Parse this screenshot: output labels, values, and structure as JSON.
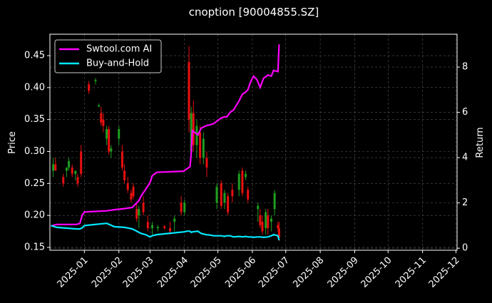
{
  "chart_data": {
    "type": "candlestick",
    "title": "cnoption [90004855.SZ]",
    "ylabel": "Price",
    "y2label": "Return",
    "xlim": [
      0,
      366
    ],
    "xticks": [
      {
        "value": 31,
        "label": "2025-01"
      },
      {
        "value": 62,
        "label": "2025-02"
      },
      {
        "value": 90,
        "label": "2025-03"
      },
      {
        "value": 121,
        "label": "2025-04"
      },
      {
        "value": 151,
        "label": "2025-05"
      },
      {
        "value": 182,
        "label": "2025-06"
      },
      {
        "value": 212,
        "label": "2025-07"
      },
      {
        "value": 243,
        "label": "2025-08"
      },
      {
        "value": 274,
        "label": "2025-09"
      },
      {
        "value": 304,
        "label": "2025-10"
      },
      {
        "value": 335,
        "label": "2025-11"
      },
      {
        "value": 365,
        "label": "2025-12"
      }
    ],
    "ylim": [
      0.1455,
      0.4835
    ],
    "yticks": [
      0.15,
      {
        "value": 0.2,
        "label": "0.20"
      },
      0.25,
      {
        "value": 0.3,
        "label": "0.30"
      },
      0.35,
      {
        "value": 0.4,
        "label": "0.40"
      },
      0.45
    ],
    "y2lim": [
      -0.09,
      9.45
    ],
    "y2ticks": [
      0,
      2,
      4,
      6,
      8
    ],
    "grid": true,
    "legend": "upper left",
    "up_color": "#1f9e1f",
    "down_color": "#e81010",
    "candles": {
      "x": [
        3,
        5,
        12,
        15,
        17,
        20,
        23,
        25,
        28,
        35,
        41,
        44,
        46,
        48,
        51,
        53,
        55,
        62,
        65,
        67,
        70,
        73,
        75,
        78,
        80,
        84,
        88,
        92,
        97,
        103,
        108,
        112,
        118,
        121,
        125,
        127,
        129,
        132,
        135,
        138,
        141,
        150,
        154,
        157,
        160,
        164,
        170,
        173,
        176,
        178,
        187,
        189,
        191,
        194,
        196,
        199,
        202,
        205,
        206
      ],
      "open": [
        0.27,
        0.28,
        0.26,
        0.27,
        0.275,
        0.275,
        0.265,
        0.26,
        0.3,
        0.405,
        0.41,
        0.37,
        0.36,
        0.35,
        0.32,
        0.335,
        0.3,
        0.32,
        0.3,
        0.27,
        0.25,
        0.235,
        0.245,
        0.21,
        0.2,
        0.22,
        0.19,
        0.18,
        0.18,
        0.183,
        0.18,
        0.19,
        0.22,
        0.205,
        0.44,
        0.3,
        0.36,
        0.31,
        0.33,
        0.29,
        0.29,
        0.22,
        0.25,
        0.22,
        0.23,
        0.24,
        0.24,
        0.27,
        0.26,
        0.24,
        0.21,
        0.2,
        0.19,
        0.18,
        0.2,
        0.19,
        0.21,
        0.185,
        0.18
      ],
      "high": [
        0.29,
        0.29,
        0.265,
        0.275,
        0.29,
        0.28,
        0.27,
        0.265,
        0.31,
        0.41,
        0.415,
        0.375,
        0.37,
        0.36,
        0.34,
        0.34,
        0.31,
        0.34,
        0.31,
        0.28,
        0.26,
        0.24,
        0.25,
        0.22,
        0.215,
        0.23,
        0.2,
        0.19,
        0.185,
        0.185,
        0.19,
        0.2,
        0.23,
        0.225,
        0.465,
        0.37,
        0.38,
        0.35,
        0.34,
        0.33,
        0.3,
        0.25,
        0.255,
        0.24,
        0.235,
        0.25,
        0.27,
        0.275,
        0.27,
        0.245,
        0.22,
        0.21,
        0.2,
        0.21,
        0.21,
        0.2,
        0.24,
        0.19,
        0.19
      ],
      "low": [
        0.26,
        0.27,
        0.245,
        0.26,
        0.27,
        0.26,
        0.255,
        0.245,
        0.26,
        0.39,
        0.405,
        0.37,
        0.34,
        0.33,
        0.31,
        0.295,
        0.29,
        0.31,
        0.27,
        0.25,
        0.235,
        0.22,
        0.225,
        0.19,
        0.18,
        0.2,
        0.175,
        0.17,
        0.175,
        0.178,
        0.17,
        0.175,
        0.2,
        0.2,
        0.33,
        0.29,
        0.3,
        0.29,
        0.28,
        0.28,
        0.26,
        0.21,
        0.21,
        0.21,
        0.2,
        0.22,
        0.23,
        0.23,
        0.255,
        0.22,
        0.19,
        0.18,
        0.17,
        0.17,
        0.17,
        0.175,
        0.2,
        0.175,
        0.16
      ],
      "close": [
        0.28,
        0.27,
        0.25,
        0.275,
        0.285,
        0.265,
        0.27,
        0.25,
        0.265,
        0.395,
        0.412,
        0.372,
        0.345,
        0.34,
        0.335,
        0.3,
        0.305,
        0.335,
        0.275,
        0.255,
        0.24,
        0.225,
        0.23,
        0.195,
        0.21,
        0.205,
        0.18,
        0.185,
        0.182,
        0.18,
        0.175,
        0.195,
        0.205,
        0.22,
        0.35,
        0.36,
        0.31,
        0.34,
        0.29,
        0.32,
        0.275,
        0.245,
        0.215,
        0.235,
        0.205,
        0.23,
        0.265,
        0.235,
        0.265,
        0.225,
        0.215,
        0.185,
        0.175,
        0.205,
        0.18,
        0.195,
        0.235,
        0.18,
        0.165
      ]
    },
    "x": [
      1,
      6,
      24,
      27,
      29,
      31,
      51,
      58,
      67,
      74,
      77,
      80,
      82,
      86,
      90,
      92,
      96,
      120,
      123,
      126,
      127,
      128,
      133,
      136,
      140,
      144,
      147,
      154,
      157,
      159,
      162,
      165,
      170,
      173,
      176,
      178,
      180,
      183,
      186,
      189,
      192,
      196,
      199,
      201,
      205,
      206
    ],
    "series": [
      {
        "name": "Swtool.com AI",
        "color": "#ff00ff",
        "axis": "y2",
        "values": [
          0.98,
          1.05,
          1.05,
          1.1,
          1.45,
          1.6,
          1.65,
          1.7,
          1.75,
          1.8,
          1.95,
          2.1,
          2.3,
          2.6,
          2.9,
          3.2,
          3.35,
          3.4,
          3.5,
          3.6,
          4.2,
          5.2,
          5.0,
          5.3,
          5.4,
          5.45,
          5.5,
          5.75,
          5.8,
          5.8,
          6.0,
          6.1,
          6.5,
          6.8,
          6.9,
          7.0,
          7.3,
          7.6,
          7.45,
          7.1,
          7.5,
          7.65,
          7.6,
          7.85,
          7.8,
          9.0
        ]
      },
      {
        "name": "Buy-and-Hold",
        "color": "#00e8ff",
        "axis": "y2",
        "values": [
          1.0,
          0.92,
          0.85,
          0.85,
          0.9,
          1.0,
          1.1,
          0.95,
          0.92,
          0.85,
          0.78,
          0.7,
          0.65,
          0.6,
          0.5,
          0.55,
          0.6,
          0.72,
          0.75,
          0.75,
          0.7,
          0.72,
          0.75,
          0.65,
          0.6,
          0.58,
          0.55,
          0.55,
          0.52,
          0.55,
          0.55,
          0.5,
          0.52,
          0.5,
          0.52,
          0.5,
          0.5,
          0.48,
          0.5,
          0.5,
          0.48,
          0.5,
          0.55,
          0.6,
          0.55,
          0.35
        ]
      }
    ]
  }
}
